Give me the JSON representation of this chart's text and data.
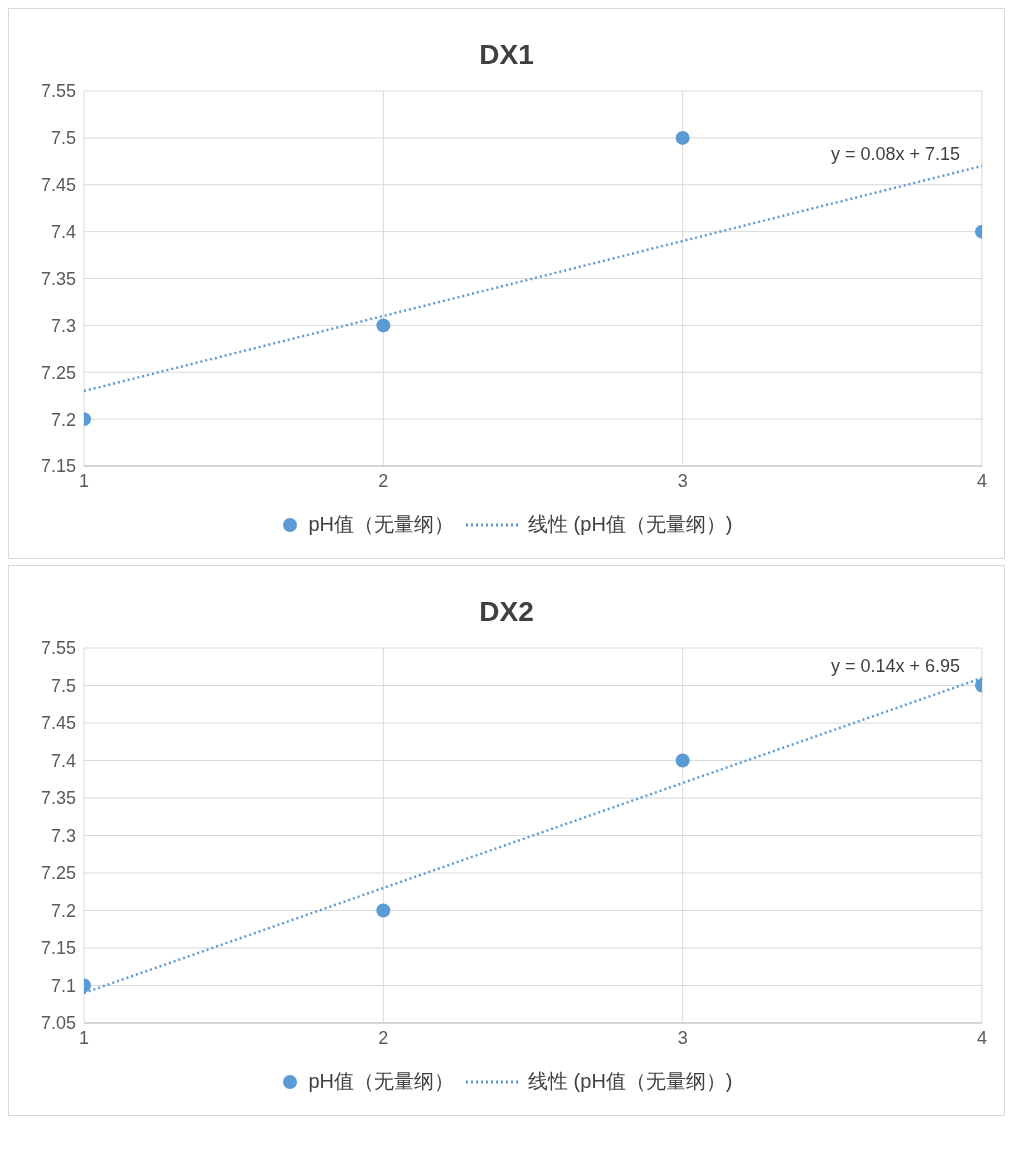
{
  "chart_data": [
    {
      "type": "scatter",
      "title": "DX1",
      "x": [
        1,
        2,
        3,
        4
      ],
      "xlim": [
        1,
        4
      ],
      "xticks": [
        1,
        2,
        3,
        4
      ],
      "ylim": [
        7.15,
        7.55
      ],
      "yticks": [
        7.15,
        7.2,
        7.25,
        7.3,
        7.35,
        7.4,
        7.45,
        7.5,
        7.55
      ],
      "grid": true,
      "legend": "bottom",
      "marker": "circle",
      "series": [
        {
          "name": "pH值（无量纲）",
          "color": "#5b9bd5",
          "values": [
            7.2,
            7.3,
            7.5,
            7.4
          ]
        },
        {
          "type": "line",
          "name": "线性 (pH值（无量纲）)",
          "color": "#5b9bd5",
          "values": [
            7.23,
            7.31,
            7.39,
            7.47
          ],
          "line_style": "dotted",
          "marker": "none"
        }
      ],
      "annotations": [
        {
          "text": "y = 0.08x + 7.15",
          "x": 4,
          "y": 7.47
        }
      ]
    },
    {
      "type": "scatter",
      "title": "DX2",
      "x": [
        1,
        2,
        3,
        4
      ],
      "xlim": [
        1,
        4
      ],
      "xticks": [
        1,
        2,
        3,
        4
      ],
      "ylim": [
        7.05,
        7.55
      ],
      "yticks": [
        7.05,
        7.1,
        7.15,
        7.2,
        7.25,
        7.3,
        7.35,
        7.4,
        7.45,
        7.5,
        7.55
      ],
      "grid": true,
      "legend": "bottom",
      "marker": "circle",
      "series": [
        {
          "name": "pH值（无量纲）",
          "color": "#5b9bd5",
          "values": [
            7.1,
            7.2,
            7.4,
            7.5
          ]
        },
        {
          "type": "line",
          "name": "线性 (pH值（无量纲）)",
          "color": "#5b9bd5",
          "values": [
            7.09,
            7.23,
            7.37,
            7.51
          ],
          "line_style": "dotted",
          "marker": "none"
        }
      ],
      "annotations": [
        {
          "text": "y = 0.14x + 6.95",
          "x": 4,
          "y": 7.51
        }
      ]
    }
  ]
}
